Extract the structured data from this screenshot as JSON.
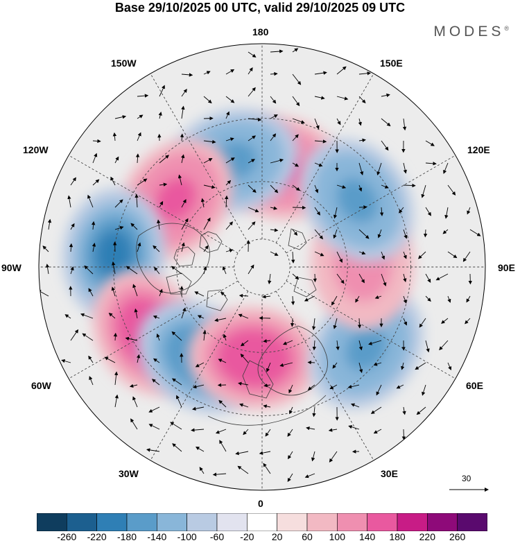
{
  "title": "Base 29/10/2025 00 UTC, valid 29/10/2025 09 UTC",
  "brand": "MODES",
  "brand_mark": "®",
  "longitude_labels": {
    "top": "180",
    "bottom": "0",
    "left": "90W",
    "right": "90E",
    "upper_left": "150W",
    "upper_right": "150E",
    "mid_upper_left": "120W",
    "mid_upper_right": "120E",
    "mid_lower_left": "60W",
    "mid_lower_right": "60E",
    "lower_left": "30W",
    "lower_right": "30E"
  },
  "reference_vector": {
    "label": "30"
  },
  "colorbar": {
    "ticks": [
      "-260",
      "-220",
      "-180",
      "-140",
      "-100",
      "-60",
      "-20",
      "20",
      "60",
      "100",
      "140",
      "180",
      "220",
      "260"
    ],
    "colors": [
      "#0f3d5e",
      "#1c5f8f",
      "#2f7fb5",
      "#5a9cc9",
      "#89b6d9",
      "#b9cbe3",
      "#e2e3ef",
      "#ffffff",
      "#f6dede",
      "#f2b9c3",
      "#ef8fb0",
      "#e9599f",
      "#c81c86",
      "#8e0a79",
      "#5a0a6e"
    ]
  },
  "anomaly_features": [
    {
      "sign": "positive",
      "value": 150,
      "lat": 55,
      "lon": 170
    },
    {
      "sign": "negative",
      "value": -150,
      "lat": 52,
      "lon": -165
    },
    {
      "sign": "positive",
      "value": 150,
      "lat": 52,
      "lon": -128
    },
    {
      "sign": "negative",
      "value": -200,
      "lat": 40,
      "lon": -95
    },
    {
      "sign": "positive",
      "value": 170,
      "lat": 45,
      "lon": -60
    },
    {
      "sign": "negative",
      "value": -170,
      "lat": 52,
      "lon": -35
    },
    {
      "sign": "positive",
      "value": 180,
      "lat": 58,
      "lon": -5
    },
    {
      "sign": "negative",
      "value": -160,
      "lat": 45,
      "lon": 52
    },
    {
      "sign": "positive",
      "value": 120,
      "lat": 55,
      "lon": 92
    },
    {
      "sign": "negative",
      "value": -150,
      "lat": 50,
      "lon": 125
    }
  ]
}
